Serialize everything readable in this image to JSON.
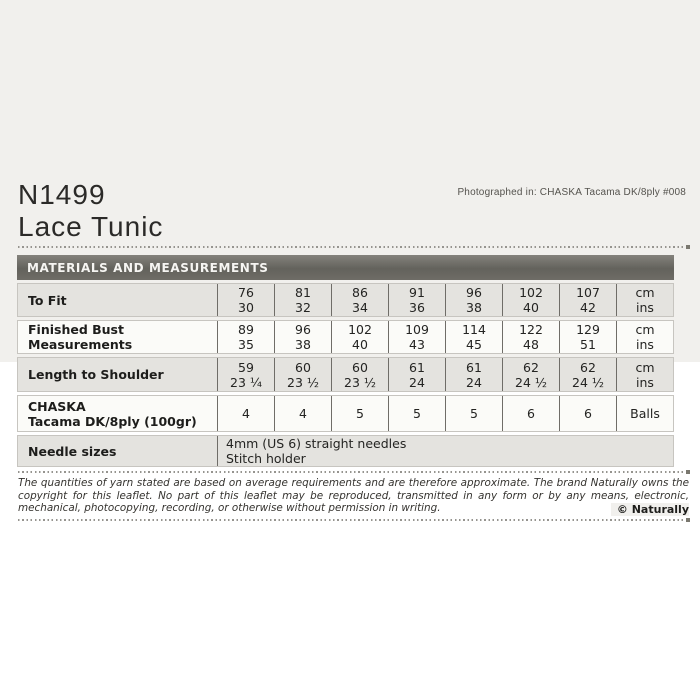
{
  "page": {
    "pattern_number": "N1499",
    "pattern_name": "Lace Tunic",
    "photo_credit": "Photographed in: CHASKA Tacama DK/8ply #008"
  },
  "table": {
    "header": "MATERIALS AND MEASUREMENTS",
    "rows": [
      {
        "label": [
          "To Fit"
        ],
        "values": [
          [
            "76",
            "30"
          ],
          [
            "81",
            "32"
          ],
          [
            "86",
            "34"
          ],
          [
            "91",
            "36"
          ],
          [
            "96",
            "38"
          ],
          [
            "102",
            "40"
          ],
          [
            "107",
            "42"
          ]
        ],
        "unit": [
          "cm",
          "ins"
        ]
      },
      {
        "label": [
          "Finished Bust",
          "Measurements"
        ],
        "values": [
          [
            "89",
            "35"
          ],
          [
            "96",
            "38"
          ],
          [
            "102",
            "40"
          ],
          [
            "109",
            "43"
          ],
          [
            "114",
            "45"
          ],
          [
            "122",
            "48"
          ],
          [
            "129",
            "51"
          ]
        ],
        "unit": [
          "cm",
          "ins"
        ]
      },
      {
        "label": [
          "Length to Shoulder"
        ],
        "values": [
          [
            "59",
            "23 ¼"
          ],
          [
            "60",
            "23 ½"
          ],
          [
            "60",
            "23 ½"
          ],
          [
            "61",
            "24"
          ],
          [
            "61",
            "24"
          ],
          [
            "62",
            "24 ½"
          ],
          [
            "62",
            "24 ½"
          ]
        ],
        "unit": [
          "cm",
          "ins"
        ]
      },
      {
        "label": [
          "CHASKA",
          "Tacama DK/8ply (100gr)"
        ],
        "values": [
          [
            "4"
          ],
          [
            "4"
          ],
          [
            "5"
          ],
          [
            "5"
          ],
          [
            "5"
          ],
          [
            "6"
          ],
          [
            "6"
          ]
        ],
        "unit": [
          "Balls"
        ]
      },
      {
        "label": [
          "Needle sizes"
        ],
        "span_text": [
          "4mm (US 6) straight needles",
          "Stitch holder"
        ]
      }
    ]
  },
  "footer": {
    "copyright_text": "The quantities of yarn stated are based on average requirements and are therefore approximate. The brand Naturally owns the copyright for this leaflet. No part of this leaflet may be reproduced, transmitted in any form or by any means, electronic, mechanical, photocopying, recording, or otherwise without permission in writing.",
    "brand": "© Naturally"
  },
  "colors": {
    "header_bar": "#6b6a64",
    "row_gray": "#e4e3df",
    "row_white": "#fbfbf8",
    "scan_background": "#f1f0ed"
  }
}
